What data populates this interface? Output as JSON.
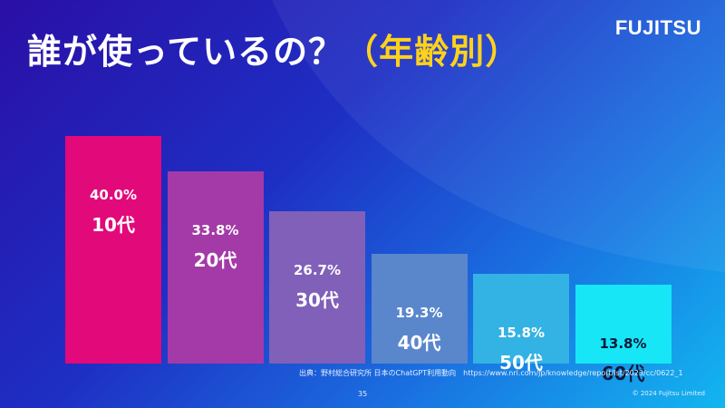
{
  "slide": {
    "title_main": "誰が使っているの？",
    "title_highlight": "（年齢別）",
    "logo": "FUJITSU",
    "source": "出典：野村総合研究所 日本のChatGPT利用動向　https://www.nri.com/jp/knowledge/report/lst/2023/cc/0622_1",
    "page_number": "35",
    "copyright": "© 2024 Fujitsu Limited"
  },
  "chart_data": {
    "type": "bar",
    "title": "誰が使っているの？（年齢別）",
    "categories": [
      "10代",
      "20代",
      "30代",
      "40代",
      "50代",
      "60代"
    ],
    "values": [
      40.0,
      33.8,
      26.7,
      19.3,
      15.8,
      13.8
    ],
    "value_labels": [
      "40.0%",
      "33.8%",
      "26.7%",
      "19.3%",
      "15.8%",
      "13.8%"
    ],
    "unit": "%",
    "ylim": [
      0,
      40
    ],
    "colors": [
      "#e2097a",
      "#a43aa8",
      "#8060b8",
      "#5a86cc",
      "#33b2e4",
      "#16e6f6"
    ]
  }
}
